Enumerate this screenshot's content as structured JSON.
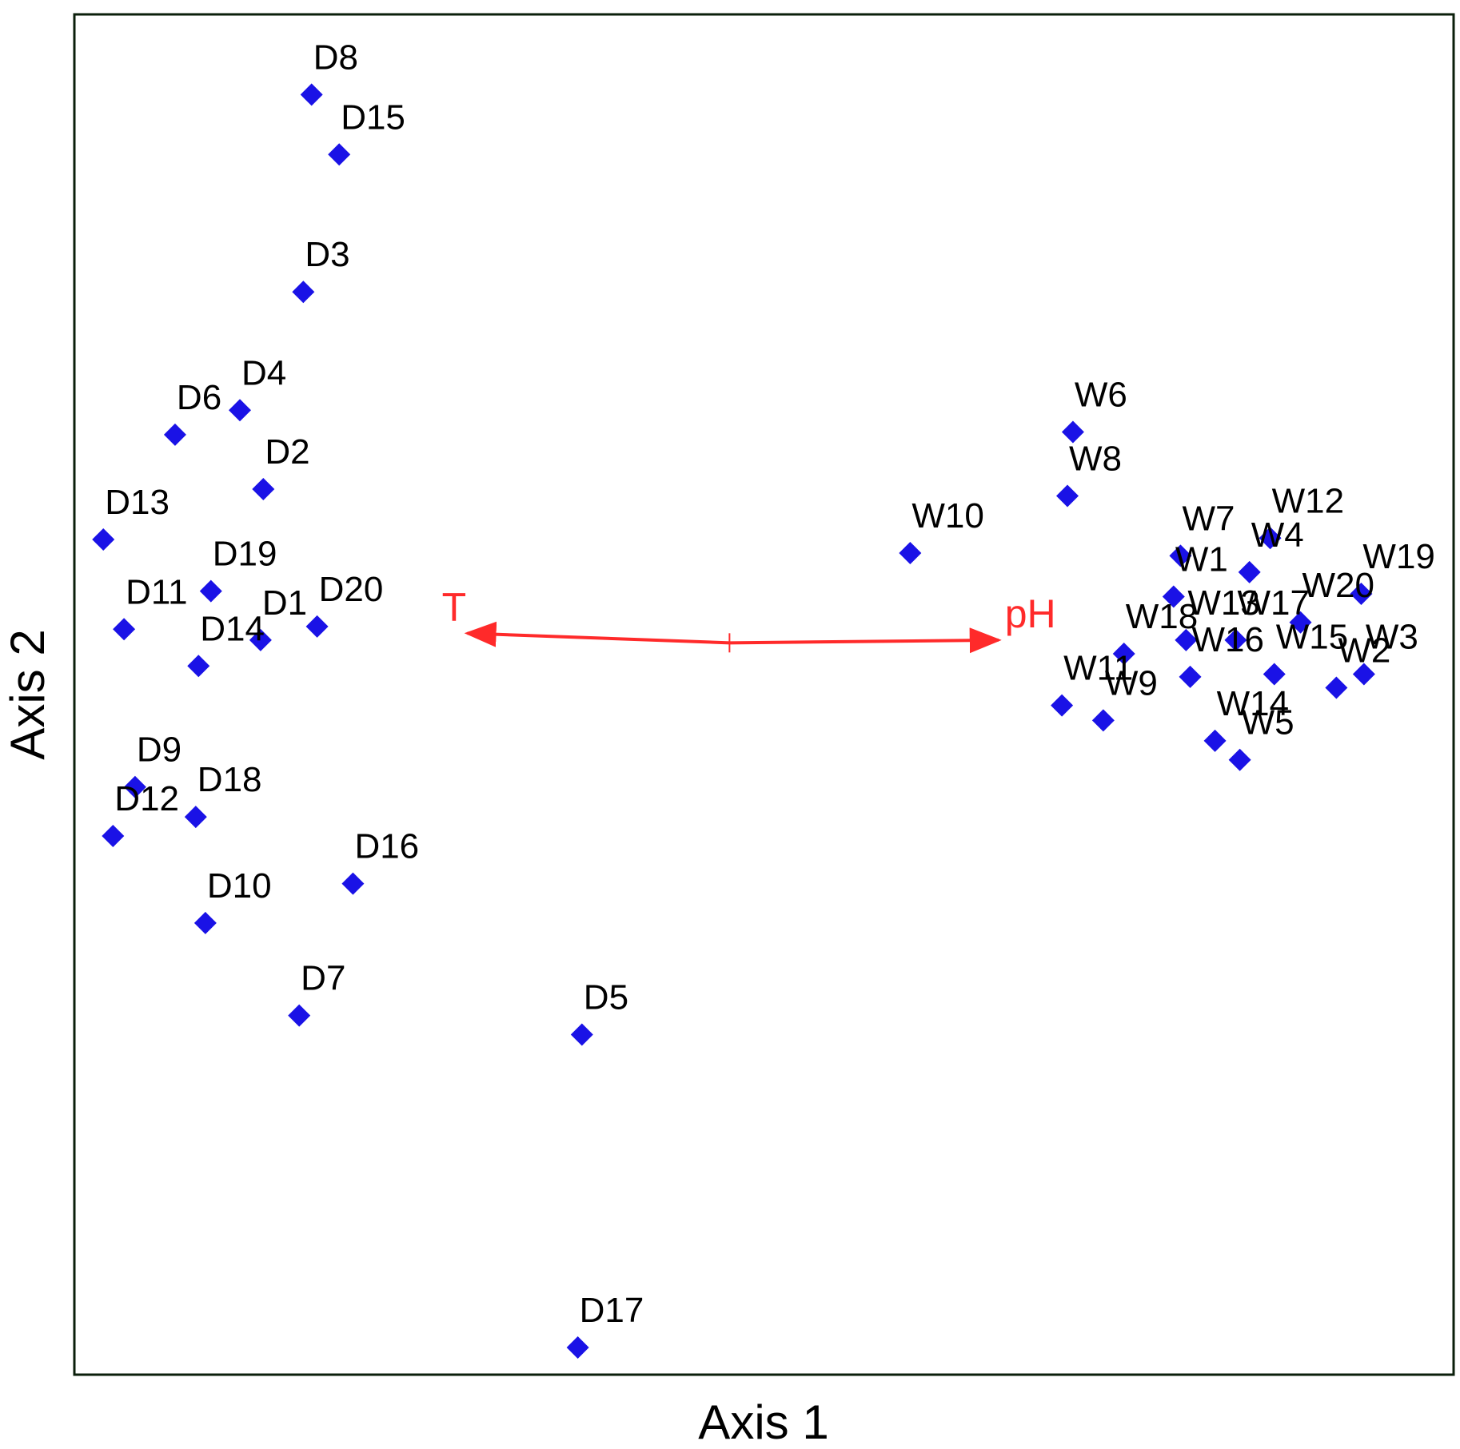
{
  "chart_data": {
    "type": "scatter",
    "title": "",
    "xlabel": "Axis 1",
    "ylabel": "Axis 2",
    "xlim": [
      0,
      100
    ],
    "ylim": [
      0,
      100
    ],
    "grid": false,
    "colors": {
      "points": "#1a12e6",
      "vectors": "#ff2a2a",
      "frame": "#0b1f0b"
    },
    "marker": "diamond",
    "points": [
      {
        "label": "D8",
        "x": 17.2,
        "y": 94.1
      },
      {
        "label": "D15",
        "x": 19.2,
        "y": 89.7
      },
      {
        "label": "D3",
        "x": 16.6,
        "y": 79.6
      },
      {
        "label": "D4",
        "x": 12.0,
        "y": 70.9
      },
      {
        "label": "D6",
        "x": 7.3,
        "y": 69.1
      },
      {
        "label": "D2",
        "x": 13.7,
        "y": 65.1
      },
      {
        "label": "D13",
        "x": 2.1,
        "y": 61.4
      },
      {
        "label": "D19",
        "x": 9.9,
        "y": 57.6
      },
      {
        "label": "D11",
        "x": 3.6,
        "y": 54.8
      },
      {
        "label": "D1",
        "x": 13.5,
        "y": 54.0
      },
      {
        "label": "D20",
        "x": 17.6,
        "y": 55.0
      },
      {
        "label": "D14",
        "x": 9.0,
        "y": 52.1
      },
      {
        "label": "D9",
        "x": 4.4,
        "y": 43.2
      },
      {
        "label": "D18",
        "x": 8.8,
        "y": 41.0
      },
      {
        "label": "D12",
        "x": 2.8,
        "y": 39.6
      },
      {
        "label": "D16",
        "x": 20.2,
        "y": 36.1
      },
      {
        "label": "D10",
        "x": 9.5,
        "y": 33.2
      },
      {
        "label": "D7",
        "x": 16.3,
        "y": 26.4
      },
      {
        "label": "D5",
        "x": 36.8,
        "y": 25.0
      },
      {
        "label": "D17",
        "x": 36.5,
        "y": 2.0
      },
      {
        "label": "W6",
        "x": 72.4,
        "y": 69.3
      },
      {
        "label": "W8",
        "x": 72.0,
        "y": 64.6
      },
      {
        "label": "W10",
        "x": 60.6,
        "y": 60.4
      },
      {
        "label": "W7",
        "x": 80.2,
        "y": 60.2
      },
      {
        "label": "W12",
        "x": 86.7,
        "y": 61.5
      },
      {
        "label": "W4",
        "x": 85.2,
        "y": 59.0
      },
      {
        "label": "W1",
        "x": 79.7,
        "y": 57.2
      },
      {
        "label": "W20",
        "x": 88.9,
        "y": 55.3
      },
      {
        "label": "W19",
        "x": 93.3,
        "y": 57.4
      },
      {
        "label": "W18",
        "x": 76.1,
        "y": 53.0
      },
      {
        "label": "W13",
        "x": 80.6,
        "y": 54.0
      },
      {
        "label": "W17",
        "x": 84.2,
        "y": 54.0
      },
      {
        "label": "W15",
        "x": 87.0,
        "y": 51.5
      },
      {
        "label": "W3",
        "x": 93.5,
        "y": 51.5
      },
      {
        "label": "W16",
        "x": 80.9,
        "y": 51.3
      },
      {
        "label": "W2",
        "x": 91.5,
        "y": 50.5
      },
      {
        "label": "W11",
        "x": 71.6,
        "y": 49.2
      },
      {
        "label": "W9",
        "x": 74.6,
        "y": 48.1
      },
      {
        "label": "W14",
        "x": 82.7,
        "y": 46.6
      },
      {
        "label": "W5",
        "x": 84.5,
        "y": 45.2
      }
    ],
    "vectors": [
      {
        "label": "T",
        "origin": [
          47.5,
          53.8
        ],
        "end": [
          28.5,
          54.5
        ]
      },
      {
        "label": "pH",
        "origin": [
          47.5,
          53.8
        ],
        "end": [
          67.0,
          54.0
        ]
      }
    ]
  }
}
